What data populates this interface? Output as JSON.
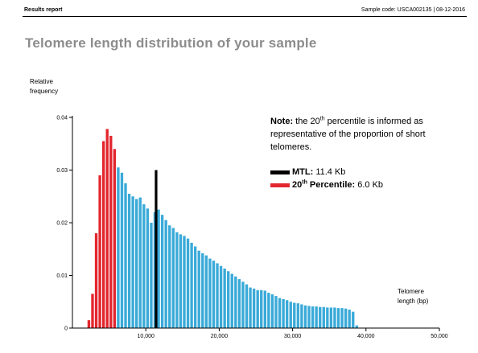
{
  "header": {
    "left": "Results report",
    "right": "Sample code: USCA002135 | 08-12-2016"
  },
  "page_title": "Telomere length distribution of your sample",
  "note": {
    "bold": "Note:",
    "text_part1": " the 20",
    "text_sup": "th",
    "text_part2": " percentile is informed as representative of the proportion of short telomeres."
  },
  "legend": {
    "mtl_label": "MTL:",
    "mtl_value": " 11.4 Kb",
    "pct_label_part1": "20",
    "pct_label_sup": "th",
    "pct_label_part2": " Percentile:",
    "pct_value": " 6.0 Kb",
    "mtl_color": "#000000",
    "pct_color": "#e3262e"
  },
  "chart_data": {
    "type": "bar",
    "ylabel": "Relative frequency",
    "xlabel": "Telomere length (bp)",
    "xlim": [
      0,
      50000
    ],
    "ylim": [
      0,
      0.04
    ],
    "bin_width": 500,
    "y_ticks": [
      {
        "value": 0,
        "label": "0"
      },
      {
        "value": 0.01,
        "label": "0.01"
      },
      {
        "value": 0.02,
        "label": "0.02"
      },
      {
        "value": 0.03,
        "label": "0.03"
      },
      {
        "value": 0.04,
        "label": "0.04"
      }
    ],
    "x_ticks": [
      {
        "value": 10000,
        "label": "10,000"
      },
      {
        "value": 20000,
        "label": "20,000"
      },
      {
        "value": 30000,
        "label": "30,000"
      },
      {
        "value": 40000,
        "label": "40,000"
      },
      {
        "value": 50000,
        "label": "50,000"
      }
    ],
    "colors": {
      "short": "#e3262e",
      "rest": "#3aaad8",
      "mtl": "#000000"
    },
    "percentile_20_bp": 6000,
    "mtl_bp": 11400,
    "bins_start": [
      2000,
      2500,
      3000,
      3500,
      4000,
      4500,
      5000,
      5500,
      6000,
      6500,
      7000,
      7500,
      8000,
      8500,
      9000,
      9500,
      10000,
      10500,
      11000,
      11500,
      12000,
      12500,
      13000,
      13500,
      14000,
      14500,
      15000,
      15500,
      16000,
      16500,
      17000,
      17500,
      18000,
      18500,
      19000,
      19500,
      20000,
      20500,
      21000,
      21500,
      22000,
      22500,
      23000,
      23500,
      24000,
      24500,
      25000,
      25500,
      26000,
      26500,
      27000,
      27500,
      28000,
      28500,
      29000,
      29500,
      30000,
      30500,
      31000,
      31500,
      32000,
      32500,
      33000,
      33500,
      34000,
      34500,
      35000,
      35500,
      36000,
      36500,
      37000,
      37500,
      38000,
      38500
    ],
    "values": [
      0.0015,
      0.0065,
      0.018,
      0.029,
      0.0355,
      0.0378,
      0.0365,
      0.034,
      0.0305,
      0.0295,
      0.0275,
      0.0255,
      0.025,
      0.0245,
      0.0248,
      0.0235,
      0.0227,
      0.02,
      0.022,
      0.0225,
      0.0215,
      0.0205,
      0.0195,
      0.019,
      0.0182,
      0.0178,
      0.0175,
      0.017,
      0.0162,
      0.0155,
      0.0147,
      0.0142,
      0.0138,
      0.0132,
      0.0128,
      0.0123,
      0.0118,
      0.0113,
      0.0108,
      0.0103,
      0.0098,
      0.0093,
      0.0088,
      0.0083,
      0.0077,
      0.0075,
      0.0072,
      0.0072,
      0.0071,
      0.0067,
      0.0064,
      0.0061,
      0.0057,
      0.0055,
      0.0053,
      0.005,
      0.0048,
      0.0047,
      0.0045,
      0.0043,
      0.0042,
      0.0041,
      0.0041,
      0.004,
      0.004,
      0.0039,
      0.0039,
      0.0039,
      0.0038,
      0.0038,
      0.0037,
      0.0035,
      0.0031,
      0.0005
    ]
  }
}
